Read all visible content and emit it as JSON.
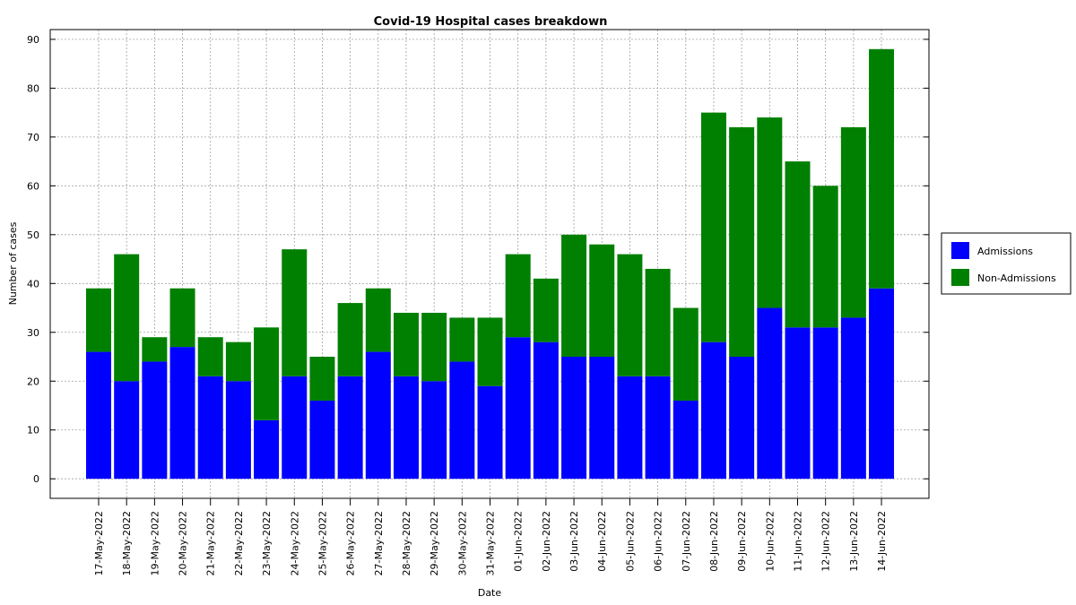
{
  "chart_data": {
    "type": "bar",
    "stacked": true,
    "title": "Covid-19 Hospital cases breakdown",
    "xlabel": "Date",
    "ylabel": "Number of cases",
    "ylim": [
      -4,
      92
    ],
    "yticks": [
      0,
      10,
      20,
      30,
      40,
      50,
      60,
      70,
      80,
      90
    ],
    "grid": true,
    "legend_position": "right",
    "categories": [
      "17-May-2022",
      "18-May-2022",
      "19-May-2022",
      "20-May-2022",
      "21-May-2022",
      "22-May-2022",
      "23-May-2022",
      "24-May-2022",
      "25-May-2022",
      "26-May-2022",
      "27-May-2022",
      "28-May-2022",
      "29-May-2022",
      "30-May-2022",
      "31-May-2022",
      "01-Jun-2022",
      "02-Jun-2022",
      "03-Jun-2022",
      "04-Jun-2022",
      "05-Jun-2022",
      "06-Jun-2022",
      "07-Jun-2022",
      "08-Jun-2022",
      "09-Jun-2022",
      "10-Jun-2022",
      "11-Jun-2022",
      "12-Jun-2022",
      "13-Jun-2022",
      "14-Jun-2022"
    ],
    "series": [
      {
        "name": "Admissions",
        "color": "#0000ff",
        "values": [
          26,
          20,
          24,
          27,
          21,
          20,
          12,
          21,
          16,
          21,
          26,
          21,
          20,
          24,
          19,
          29,
          28,
          25,
          25,
          21,
          21,
          16,
          28,
          25,
          35,
          31,
          31,
          33,
          39
        ]
      },
      {
        "name": "Non-Admissions",
        "color": "#008000",
        "values": [
          13,
          26,
          5,
          12,
          8,
          8,
          19,
          26,
          9,
          15,
          13,
          13,
          14,
          9,
          14,
          17,
          13,
          25,
          23,
          25,
          22,
          19,
          47,
          47,
          39,
          34,
          29,
          39,
          49
        ]
      }
    ]
  }
}
